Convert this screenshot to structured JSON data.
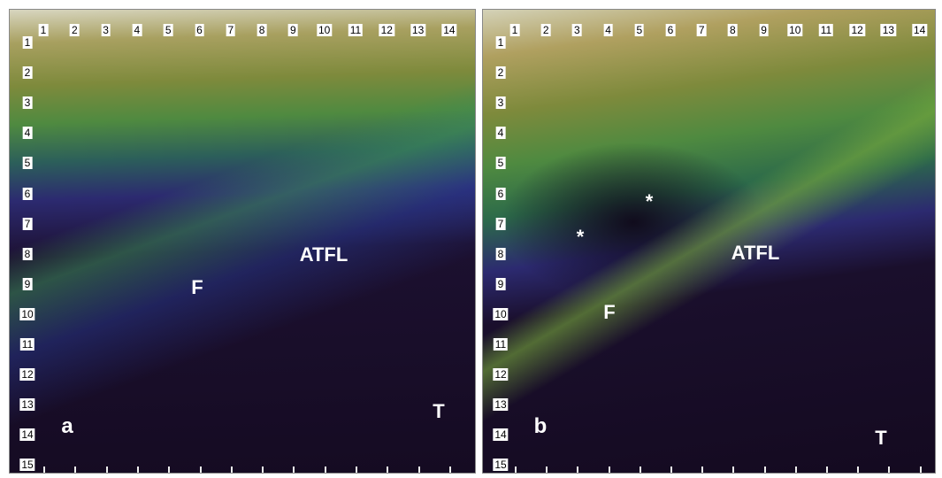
{
  "panels": [
    {
      "label": "a",
      "top_ticks": [
        "1",
        "2",
        "3",
        "4",
        "5",
        "6",
        "7",
        "8",
        "9",
        "10",
        "11",
        "12",
        "13",
        "14"
      ],
      "left_ticks": [
        "1",
        "2",
        "3",
        "4",
        "5",
        "6",
        "7",
        "8",
        "9",
        "10",
        "11",
        "12",
        "13",
        "14",
        "15"
      ],
      "annotations": [
        "ATFL",
        "F",
        "T"
      ]
    },
    {
      "label": "b",
      "top_ticks": [
        "1",
        "2",
        "3",
        "4",
        "5",
        "6",
        "7",
        "8",
        "9",
        "10",
        "11",
        "12",
        "13",
        "14"
      ],
      "left_ticks": [
        "1",
        "2",
        "3",
        "4",
        "5",
        "6",
        "7",
        "8",
        "9",
        "10",
        "11",
        "12",
        "13",
        "14",
        "15"
      ],
      "annotations": [
        "ATFL",
        "F",
        "T",
        "*",
        "*"
      ]
    }
  ]
}
